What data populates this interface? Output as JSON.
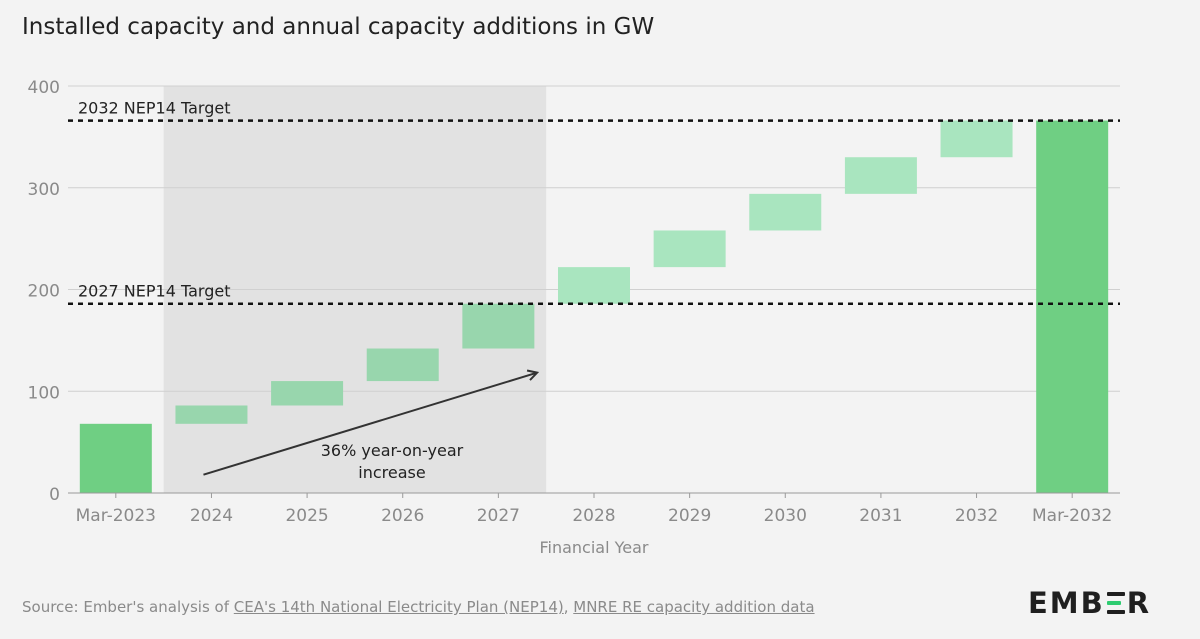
{
  "title": "Installed capacity and annual capacity additions in GW",
  "chart_data": {
    "type": "bar",
    "subtype": "waterfall",
    "categories": [
      "Mar-2023",
      "2024",
      "2025",
      "2026",
      "2027",
      "2028",
      "2029",
      "2030",
      "2031",
      "2032",
      "Mar-2032"
    ],
    "bars": [
      {
        "category": "Mar-2023",
        "kind": "total",
        "start": 0,
        "end": 68
      },
      {
        "category": "2024",
        "kind": "increment",
        "start": 68,
        "end": 86
      },
      {
        "category": "2025",
        "kind": "increment",
        "start": 86,
        "end": 110
      },
      {
        "category": "2026",
        "kind": "increment",
        "start": 110,
        "end": 142
      },
      {
        "category": "2027",
        "kind": "increment",
        "start": 142,
        "end": 186
      },
      {
        "category": "2028",
        "kind": "increment",
        "start": 186,
        "end": 222
      },
      {
        "category": "2029",
        "kind": "increment",
        "start": 222,
        "end": 258
      },
      {
        "category": "2030",
        "kind": "increment",
        "start": 258,
        "end": 294
      },
      {
        "category": "2031",
        "kind": "increment",
        "start": 294,
        "end": 330
      },
      {
        "category": "2032",
        "kind": "increment",
        "start": 330,
        "end": 366
      },
      {
        "category": "Mar-2032",
        "kind": "total",
        "start": 0,
        "end": 366
      }
    ],
    "xlabel": "Financial Year",
    "ylabel": "",
    "ylim": [
      0,
      400
    ],
    "yticks": [
      0,
      100,
      200,
      300,
      400
    ],
    "grid": true,
    "reference_lines": [
      {
        "label": "2032 NEP14 Target",
        "value": 366
      },
      {
        "label": "2027 NEP14 Target",
        "value": 186
      }
    ],
    "shaded_region": {
      "from_category": "2024",
      "to_category": "2027"
    },
    "annotation": {
      "lines": [
        "36% year-on-year",
        "increase"
      ],
      "arrow_from": {
        "category": "2024",
        "value": 18
      },
      "arrow_to": {
        "category": "2028",
        "value": 118
      }
    },
    "colors": {
      "total": "#6fcf83",
      "increment": "#a9e5bf",
      "increment_shaded": "#98d6ad",
      "shade": "#e2e2e2",
      "grid": "#d0d0d0"
    }
  },
  "source": {
    "prefix": "Source: Ember's analysis of ",
    "link1": "CEA's 14th National Electricity Plan (NEP14)",
    "separator": ", ",
    "link2": "MNRE RE capacity addition data"
  },
  "logo": {
    "before": "EMB",
    "after": "R"
  }
}
